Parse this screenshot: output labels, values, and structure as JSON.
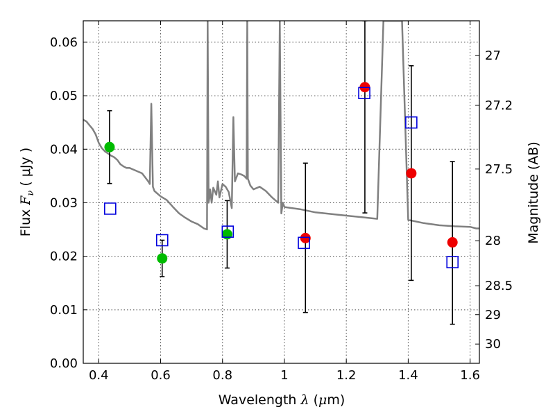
{
  "chart_data": {
    "type": "scatter",
    "title": "",
    "xlabel": {
      "prefix": "Wavelength  ",
      "symbol": "λ",
      "unit_open": " (",
      "unit_mu": "μ",
      "unit_close": "m)"
    },
    "ylabel": {
      "prefix": "Flux  ",
      "symbol": "F",
      "sub": "ν",
      "unit": "  ( μJy )"
    },
    "y2label": "Magnitude (AB)",
    "xlim": [
      0.35,
      1.63
    ],
    "ylim": [
      0.0,
      0.064
    ],
    "x_ticks": [
      0.4,
      0.6,
      0.8,
      1.0,
      1.2,
      1.4,
      1.6
    ],
    "x_tick_labels": [
      "0.4",
      "0.6",
      "0.8",
      "1",
      "1.2",
      "1.4",
      "1.6"
    ],
    "y_ticks": [
      0.0,
      0.01,
      0.02,
      0.03,
      0.04,
      0.05,
      0.06
    ],
    "y_tick_labels": [
      "0.00",
      "0.01",
      "0.02",
      "0.03",
      "0.04",
      "0.05",
      "0.06"
    ],
    "y2_ticks": [
      {
        "flux": 0.0575,
        "label": "27"
      },
      {
        "flux": 0.0482,
        "label": "27.2"
      },
      {
        "flux": 0.0363,
        "label": "27.5"
      },
      {
        "flux": 0.0229,
        "label": "28"
      },
      {
        "flux": 0.0145,
        "label": "28.5"
      },
      {
        "flux": 0.0091,
        "label": "29"
      },
      {
        "flux": 0.0036,
        "label": "30"
      }
    ],
    "grid": true,
    "colors": {
      "model": "#808080",
      "green": "#00bb00",
      "red": "#ee0000",
      "open_square": "#0000dd",
      "errorbar": "#000000"
    },
    "series": [
      {
        "type": "line",
        "x": [
          0.35,
          0.36,
          0.37,
          0.38,
          0.39,
          0.4,
          0.41,
          0.42,
          0.43,
          0.44,
          0.45,
          0.46,
          0.47,
          0.48,
          0.49,
          0.5,
          0.52,
          0.54,
          0.56,
          0.565,
          0.57,
          0.575,
          0.58,
          0.6,
          0.62,
          0.64,
          0.66,
          0.68,
          0.7,
          0.72,
          0.74,
          0.75,
          0.752,
          0.755,
          0.758,
          0.76,
          0.765,
          0.77,
          0.78,
          0.785,
          0.79,
          0.8,
          0.81,
          0.82,
          0.83,
          0.835,
          0.84,
          0.85,
          0.86,
          0.87,
          0.878,
          0.88,
          0.882,
          0.89,
          0.9,
          0.92,
          0.94,
          0.96,
          0.98,
          0.985,
          0.99,
          0.995,
          1.0,
          1.05,
          1.1,
          1.15,
          1.2,
          1.25,
          1.3,
          1.32,
          1.35,
          1.38,
          1.4,
          1.45,
          1.5,
          1.55,
          1.6,
          1.62,
          1.63
        ],
        "y": [
          0.0455,
          0.0452,
          0.0445,
          0.0438,
          0.0428,
          0.0412,
          0.0402,
          0.0396,
          0.0392,
          0.0388,
          0.0385,
          0.038,
          0.0372,
          0.0368,
          0.0365,
          0.0365,
          0.036,
          0.0355,
          0.034,
          0.0335,
          0.0485,
          0.033,
          0.0322,
          0.0312,
          0.0305,
          0.0292,
          0.028,
          0.0272,
          0.0265,
          0.026,
          0.0252,
          0.025,
          0.064,
          0.03,
          0.031,
          0.0325,
          0.03,
          0.0328,
          0.0315,
          0.034,
          0.031,
          0.0335,
          0.033,
          0.032,
          0.029,
          0.046,
          0.034,
          0.0355,
          0.0353,
          0.035,
          0.0345,
          0.064,
          0.0345,
          0.0332,
          0.0325,
          0.033,
          0.0322,
          0.031,
          0.03,
          0.064,
          0.028,
          0.03,
          0.0292,
          0.0288,
          0.0282,
          0.0279,
          0.0276,
          0.0273,
          0.027,
          0.064,
          0.064,
          0.064,
          0.0268,
          0.0262,
          0.0258,
          0.0256,
          0.0255,
          0.0252,
          0.0252
        ]
      },
      {
        "type": "points",
        "marker": "green-circle",
        "x": [
          0.435,
          0.605,
          0.815
        ],
        "y": [
          0.0404,
          0.0196,
          0.0241
        ],
        "yerr_low": [
          0.0336,
          0.0162,
          0.0178
        ],
        "yerr_high": [
          0.0472,
          0.023,
          0.0304
        ]
      },
      {
        "type": "points",
        "marker": "red-circle",
        "x": [
          1.068,
          1.26,
          1.41,
          1.543
        ],
        "y": [
          0.0234,
          0.0516,
          0.0355,
          0.0226
        ],
        "yerr_low": [
          0.0095,
          0.0281,
          0.0155,
          0.0073
        ],
        "yerr_high": [
          0.0374,
          0.064,
          0.0556,
          0.0377
        ]
      },
      {
        "type": "points",
        "marker": "blue-open-square",
        "x": [
          0.437,
          0.605,
          0.817,
          1.063,
          1.258,
          1.41,
          1.543
        ],
        "y": [
          0.0289,
          0.023,
          0.0246,
          0.0225,
          0.0505,
          0.045,
          0.0189
        ]
      }
    ]
  }
}
